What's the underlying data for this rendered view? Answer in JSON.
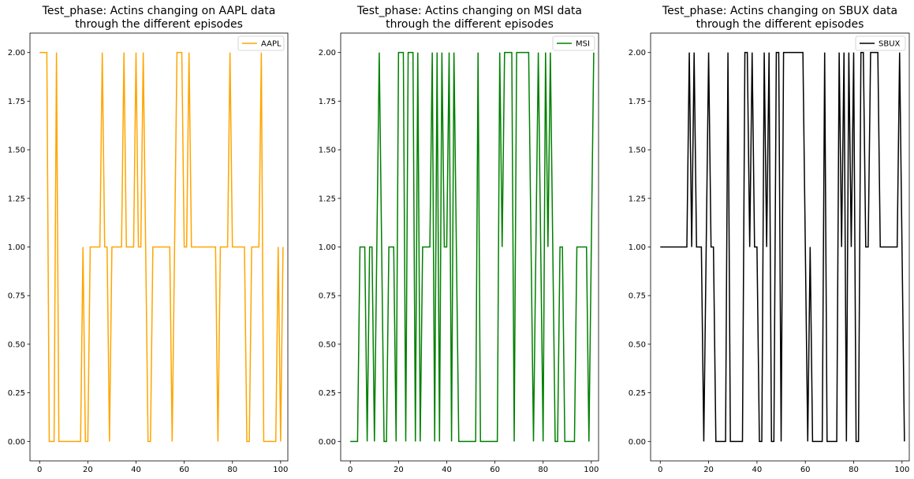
{
  "chart_data": [
    {
      "type": "line",
      "title_line1": "Test_phase: Actins changing on AAPL data",
      "title_line2": "through the different episodes",
      "xlabel": "",
      "ylabel": "",
      "xlim": [
        -4,
        103
      ],
      "ylim": [
        -0.1,
        2.1
      ],
      "xticks": [
        0,
        20,
        40,
        60,
        80,
        100
      ],
      "yticks": [
        0.0,
        0.25,
        0.5,
        0.75,
        1.0,
        1.25,
        1.5,
        1.75,
        2.0
      ],
      "ytick_labels": [
        "0.00",
        "0.25",
        "0.50",
        "0.75",
        "1.00",
        "1.25",
        "1.50",
        "1.75",
        "2.00"
      ],
      "grid": false,
      "legend_position": "top-right",
      "series": [
        {
          "name": "AAPL",
          "color": "#ffa500",
          "values": [
            2,
            2,
            2,
            2,
            0,
            0,
            0,
            2,
            0,
            0,
            0,
            0,
            0,
            0,
            0,
            0,
            0,
            0,
            1,
            0,
            0,
            1,
            1,
            1,
            1,
            1,
            2,
            1,
            1,
            0,
            1,
            1,
            1,
            1,
            1,
            2,
            1,
            1,
            1,
            1,
            2,
            1,
            1,
            2,
            1,
            0,
            0,
            1,
            1,
            1,
            1,
            1,
            1,
            1,
            1,
            0,
            1,
            2,
            2,
            2,
            1,
            1,
            2,
            1,
            1,
            1,
            1,
            1,
            1,
            1,
            1,
            1,
            1,
            1,
            0,
            1,
            1,
            1,
            1,
            2,
            1,
            1,
            1,
            1,
            1,
            1,
            0,
            0,
            1,
            1,
            1,
            1,
            2,
            0,
            0,
            0,
            0,
            0,
            0,
            1,
            0,
            1
          ]
        }
      ]
    },
    {
      "type": "line",
      "title_line1": "Test_phase: Actins changing on MSI data",
      "title_line2": "through the different episodes",
      "xlabel": "",
      "ylabel": "",
      "xlim": [
        -4,
        103
      ],
      "ylim": [
        -0.1,
        2.1
      ],
      "xticks": [
        0,
        20,
        40,
        60,
        80,
        100
      ],
      "yticks": [
        0.0,
        0.25,
        0.5,
        0.75,
        1.0,
        1.25,
        1.5,
        1.75,
        2.0
      ],
      "ytick_labels": [
        "0.00",
        "0.25",
        "0.50",
        "0.75",
        "1.00",
        "1.25",
        "1.50",
        "1.75",
        "2.00"
      ],
      "grid": false,
      "legend_position": "top-right",
      "series": [
        {
          "name": "MSI",
          "color": "#008000",
          "values": [
            0,
            0,
            0,
            0,
            1,
            1,
            1,
            0,
            1,
            1,
            0,
            1,
            2,
            1,
            0,
            0,
            1,
            1,
            1,
            0,
            2,
            2,
            2,
            0,
            2,
            2,
            2,
            0,
            2,
            0,
            1,
            1,
            1,
            1,
            2,
            0,
            2,
            0,
            2,
            1,
            1,
            2,
            0,
            2,
            1,
            0,
            0,
            0,
            0,
            0,
            0,
            0,
            0,
            2,
            0,
            0,
            0,
            0,
            0,
            0,
            0,
            0,
            2,
            1,
            2,
            2,
            2,
            2,
            0,
            2,
            2,
            2,
            2,
            2,
            2,
            1,
            0,
            1,
            2,
            1,
            0,
            2,
            1,
            2,
            1,
            0,
            0,
            1,
            1,
            0,
            0,
            0,
            0,
            0,
            1,
            1,
            1,
            1,
            1,
            0,
            1,
            2
          ]
        }
      ]
    },
    {
      "type": "line",
      "title_line1": "Test_phase: Actins changing on SBUX data",
      "title_line2": "through the different episodes",
      "xlabel": "",
      "ylabel": "",
      "xlim": [
        -4,
        103
      ],
      "ylim": [
        -0.1,
        2.1
      ],
      "xticks": [
        0,
        20,
        40,
        60,
        80,
        100
      ],
      "yticks": [
        0.0,
        0.25,
        0.5,
        0.75,
        1.0,
        1.25,
        1.5,
        1.75,
        2.0
      ],
      "ytick_labels": [
        "0.00",
        "0.25",
        "0.50",
        "0.75",
        "1.00",
        "1.25",
        "1.50",
        "1.75",
        "2.00"
      ],
      "grid": false,
      "legend_position": "top-right",
      "series": [
        {
          "name": "SBUX",
          "color": "#000000",
          "values": [
            1,
            1,
            1,
            1,
            1,
            1,
            1,
            1,
            1,
            1,
            1,
            1,
            2,
            1,
            2,
            1,
            1,
            1,
            0,
            1,
            2,
            1,
            1,
            0,
            0,
            0,
            0,
            0,
            2,
            0,
            0,
            0,
            0,
            0,
            0,
            2,
            2,
            1,
            2,
            1,
            1,
            0,
            0,
            2,
            1,
            2,
            0,
            0,
            2,
            2,
            0,
            2,
            2,
            2,
            2,
            2,
            2,
            2,
            2,
            2,
            1,
            0,
            1,
            0,
            0,
            0,
            0,
            0,
            2,
            0,
            0,
            0,
            0,
            0,
            2,
            1,
            2,
            0,
            2,
            1,
            2,
            0,
            0,
            2,
            2,
            1,
            1,
            2,
            2,
            2,
            2,
            1,
            1,
            1,
            1,
            1,
            1,
            1,
            1,
            2,
            1,
            0
          ]
        }
      ]
    }
  ]
}
